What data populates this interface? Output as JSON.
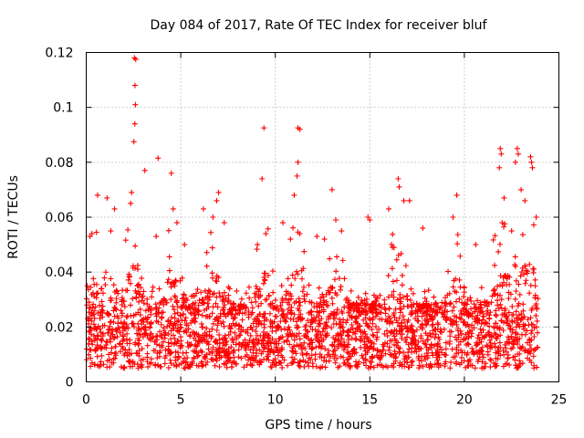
{
  "chart_data": {
    "type": "scatter",
    "title": "Day 084 of 2017, Rate Of TEC Index for receiver bluf",
    "xlabel": "GPS time / hours",
    "ylabel": "ROTI / TECUs",
    "xlim": [
      0,
      25
    ],
    "ylim": [
      0,
      0.12
    ],
    "xticks": [
      0,
      5,
      10,
      15,
      20,
      25
    ],
    "yticks": [
      0,
      0.02,
      0.04,
      0.06,
      0.08,
      0.1,
      0.12
    ],
    "xtick_labels": [
      "0",
      "5",
      "10",
      "15",
      "20",
      "25"
    ],
    "ytick_labels": [
      "0",
      "0.02",
      "0.04",
      "0.06",
      "0.08",
      "0.1",
      "0.12"
    ],
    "grid": true,
    "marker": "plus",
    "color": "#ff0000",
    "series": [
      {
        "name": "ROTI",
        "x_range": [
          0,
          23.9
        ],
        "typical_range": [
          0.005,
          0.025
        ],
        "points": [
          [
            2.55,
            0.118
          ],
          [
            2.62,
            0.1175
          ],
          [
            2.58,
            0.108
          ],
          [
            2.6,
            0.101
          ],
          [
            2.57,
            0.094
          ],
          [
            2.52,
            0.0875
          ],
          [
            3.1,
            0.077
          ],
          [
            3.8,
            0.0815
          ],
          [
            4.5,
            0.076
          ],
          [
            2.4,
            0.069
          ],
          [
            2.35,
            0.065
          ],
          [
            9.4,
            0.0925
          ],
          [
            9.3,
            0.074
          ],
          [
            11.2,
            0.0925
          ],
          [
            11.3,
            0.092
          ],
          [
            11.2,
            0.08
          ],
          [
            11.15,
            0.075
          ],
          [
            13.0,
            0.07
          ],
          [
            21.9,
            0.085
          ],
          [
            21.95,
            0.083
          ],
          [
            22.8,
            0.085
          ],
          [
            22.85,
            0.083
          ],
          [
            23.5,
            0.082
          ],
          [
            23.55,
            0.08
          ],
          [
            23.6,
            0.078
          ],
          [
            22.7,
            0.08
          ],
          [
            21.85,
            0.078
          ],
          [
            16.5,
            0.074
          ],
          [
            16.55,
            0.071
          ],
          [
            19.6,
            0.068
          ],
          [
            0.6,
            0.068
          ],
          [
            1.1,
            0.067
          ],
          [
            7.0,
            0.069
          ],
          [
            6.9,
            0.066
          ],
          [
            11.0,
            0.068
          ],
          [
            17.1,
            0.066
          ],
          [
            14.9,
            0.06
          ],
          [
            23.0,
            0.07
          ],
          [
            23.2,
            0.066
          ],
          [
            22.1,
            0.067
          ],
          [
            4.6,
            0.063
          ],
          [
            6.2,
            0.063
          ],
          [
            0.3,
            0.054
          ],
          [
            0.2,
            0.053
          ],
          [
            1.3,
            0.055
          ],
          [
            1.5,
            0.063
          ],
          [
            3.7,
            0.053
          ],
          [
            4.8,
            0.058
          ],
          [
            5.2,
            0.05
          ],
          [
            6.7,
            0.06
          ],
          [
            7.3,
            0.058
          ],
          [
            9.5,
            0.054
          ],
          [
            10.4,
            0.058
          ],
          [
            10.8,
            0.052
          ],
          [
            12.2,
            0.053
          ],
          [
            13.2,
            0.059
          ],
          [
            13.5,
            0.055
          ],
          [
            15.0,
            0.059
          ],
          [
            16.0,
            0.063
          ],
          [
            16.8,
            0.066
          ],
          [
            17.8,
            0.056
          ],
          [
            19.4,
            0.06
          ],
          [
            20.6,
            0.05
          ],
          [
            22.0,
            0.058
          ],
          [
            22.5,
            0.055
          ],
          [
            23.8,
            0.06
          ],
          [
            12.6,
            0.052
          ]
        ]
      }
    ]
  }
}
